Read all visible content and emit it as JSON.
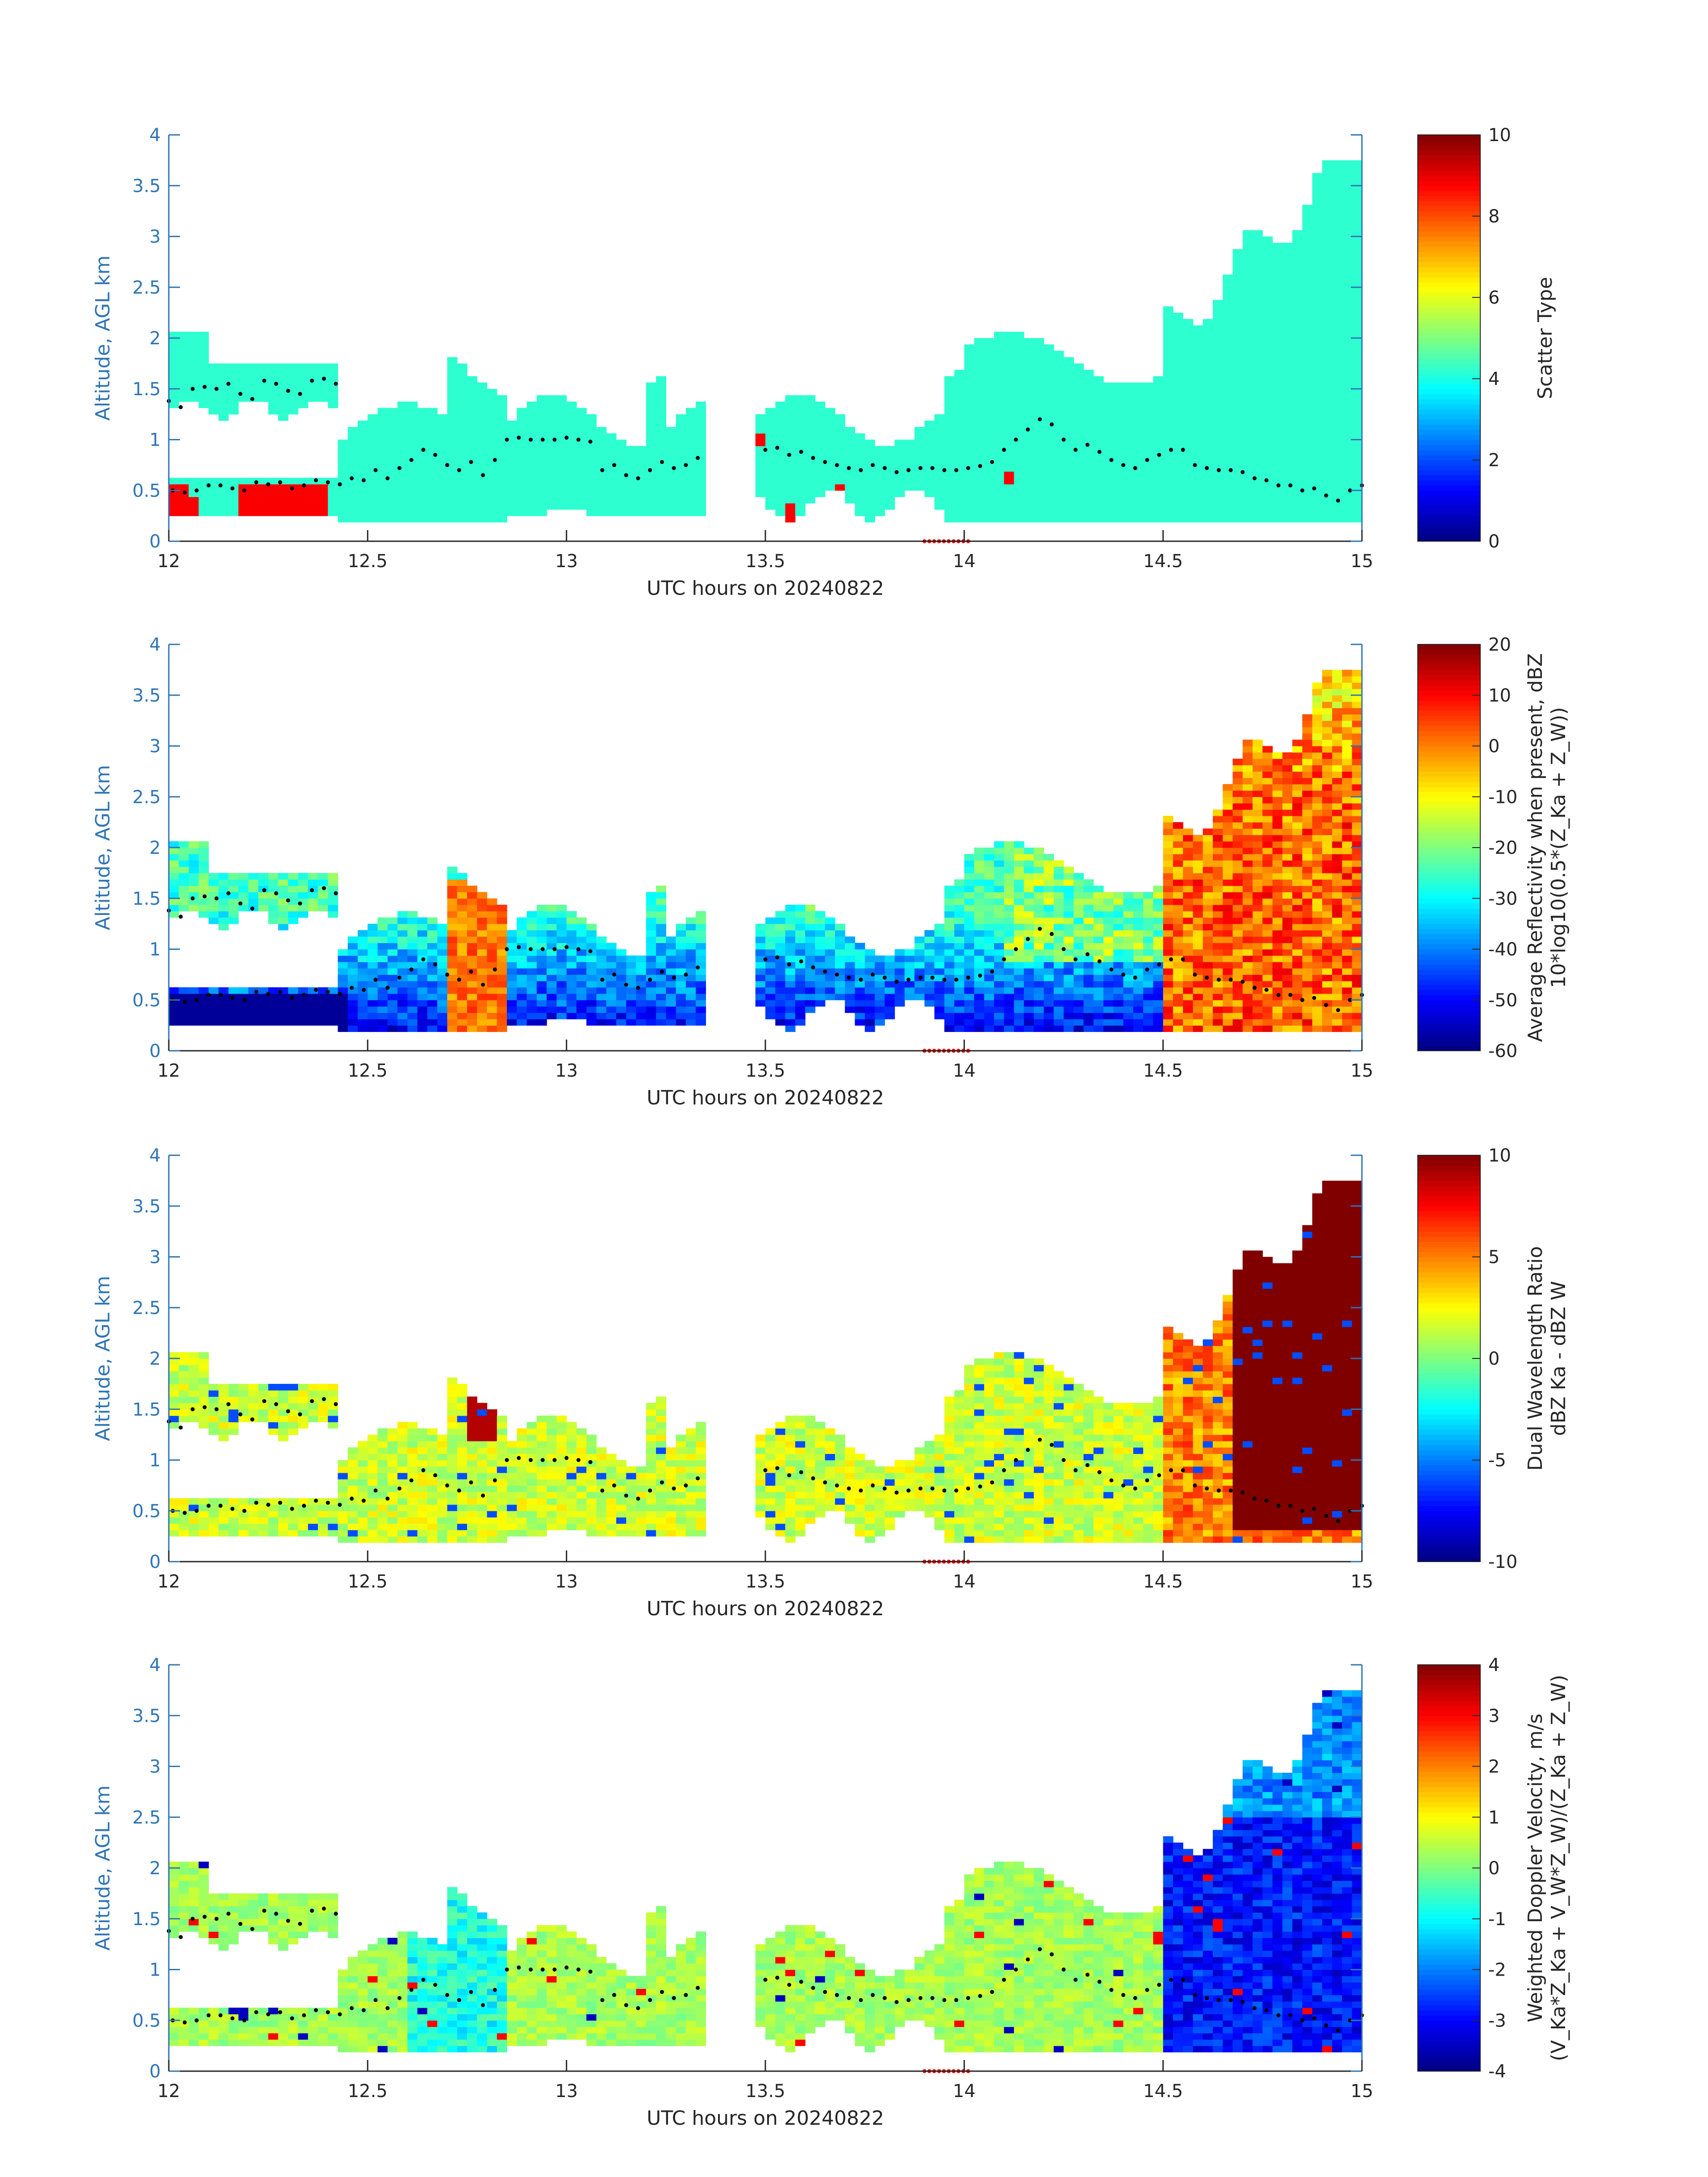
{
  "chart_data": [
    {
      "type": "heatmap",
      "xlabel": "UTC hours on 20240822",
      "ylabel": "Altitude, AGL km",
      "xlim": [
        12,
        15
      ],
      "ylim": [
        0,
        4
      ],
      "xticks": [
        "12",
        "12.5",
        "13",
        "13.5",
        "14",
        "14.5",
        "15"
      ],
      "yticks": [
        "0",
        "0.5",
        "1",
        "1.5",
        "2",
        "2.5",
        "3",
        "3.5",
        "4"
      ],
      "colorbar": {
        "label": "Scatter Type",
        "range": [
          0,
          10
        ],
        "ticks": [
          "0",
          "2",
          "4",
          "6",
          "8",
          "10"
        ]
      },
      "field": "scatter_type"
    },
    {
      "type": "heatmap",
      "xlabel": "UTC hours on 20240822",
      "ylabel": "Altitude, AGL km",
      "xlim": [
        12,
        15
      ],
      "ylim": [
        0,
        4
      ],
      "xticks": [
        "12",
        "12.5",
        "13",
        "13.5",
        "14",
        "14.5",
        "15"
      ],
      "yticks": [
        "0",
        "0.5",
        "1",
        "1.5",
        "2",
        "2.5",
        "3",
        "3.5",
        "4"
      ],
      "colorbar": {
        "label": "Average Reflectivity when present, dBZ",
        "label2": "10*log10(0.5*(Z_Ka + Z_W))",
        "range": [
          -60,
          20
        ],
        "ticks": [
          "-60",
          "-50",
          "-40",
          "-30",
          "-20",
          "-10",
          "0",
          "10",
          "20"
        ]
      },
      "field": "reflectivity"
    },
    {
      "type": "heatmap",
      "xlabel": "UTC hours on 20240822",
      "ylabel": "Altitude, AGL km",
      "xlim": [
        12,
        15
      ],
      "ylim": [
        0,
        4
      ],
      "xticks": [
        "12",
        "12.5",
        "13",
        "13.5",
        "14",
        "14.5",
        "15"
      ],
      "yticks": [
        "0",
        "0.5",
        "1",
        "1.5",
        "2",
        "2.5",
        "3",
        "3.5",
        "4"
      ],
      "colorbar": {
        "label": "Dual Wavelength Ratio",
        "label2": "dBZ Ka - dBZ W",
        "range": [
          -10,
          10
        ],
        "ticks": [
          "-10",
          "-5",
          "0",
          "5",
          "10"
        ]
      },
      "field": "dwr"
    },
    {
      "type": "heatmap",
      "xlabel": "UTC hours on 20240822",
      "ylabel": "Altitude, AGL km",
      "xlim": [
        12,
        15
      ],
      "ylim": [
        0,
        4
      ],
      "xticks": [
        "12",
        "12.5",
        "13",
        "13.5",
        "14",
        "14.5",
        "15"
      ],
      "yticks": [
        "0",
        "0.5",
        "1",
        "1.5",
        "2",
        "2.5",
        "3",
        "3.5",
        "4"
      ],
      "colorbar": {
        "label": "Weighted Doppler Velocity, m/s",
        "label2": "(V_Ka*Z_Ka + V_W*Z_W)/(Z_Ka + Z_W)",
        "range": [
          -4,
          4
        ],
        "ticks": [
          "-4",
          "-3",
          "-2",
          "-1",
          "0",
          "1",
          "2",
          "3",
          "4"
        ]
      },
      "field": "velocity"
    }
  ],
  "colormap": "jet",
  "colors": {
    "axis": "#2f75b5",
    "cloud_base_marker": "#000000",
    "time_marker": "#ff0000",
    "scatter_mixed": "#40ffe0",
    "scatter_drizzle": "#ff4c14"
  },
  "cloud_base": {
    "x": [
      12.01,
      12.04,
      12.07,
      12.1,
      12.13,
      12.16,
      12.19,
      12.22,
      12.25,
      12.28,
      12.31,
      12.34,
      12.37,
      12.4,
      12.43,
      12.46,
      12.49,
      12.52,
      12.55,
      12.58,
      12.61,
      12.64,
      12.67,
      12.7,
      12.73,
      12.76,
      12.79,
      12.82,
      12.85,
      12.88,
      12.91,
      12.94,
      12.97,
      13.0,
      13.03,
      13.06,
      13.09,
      13.12,
      13.15,
      13.18,
      13.21,
      13.24,
      13.27,
      13.3,
      13.33,
      13.5,
      13.53,
      13.56,
      13.59,
      13.62,
      13.65,
      13.68,
      13.71,
      13.74,
      13.77,
      13.8,
      13.83,
      13.86,
      13.89,
      13.92,
      13.95,
      13.98,
      14.01,
      14.04,
      14.07,
      14.1,
      14.13,
      14.16,
      14.19,
      14.22,
      14.25,
      14.28,
      14.31,
      14.34,
      14.37,
      14.4,
      14.43,
      14.46,
      14.49,
      14.52,
      14.55,
      14.58,
      14.61,
      14.64,
      14.67,
      14.7,
      14.73,
      14.76,
      14.79,
      14.82,
      14.85,
      14.88,
      14.91,
      14.94,
      14.97,
      15.0
    ],
    "y": [
      0.5,
      0.48,
      0.5,
      0.55,
      0.55,
      0.52,
      0.5,
      0.58,
      0.56,
      0.58,
      0.52,
      0.55,
      0.6,
      0.58,
      0.56,
      0.62,
      0.6,
      0.7,
      0.62,
      0.72,
      0.8,
      0.9,
      0.85,
      0.75,
      0.7,
      0.78,
      0.65,
      0.8,
      1.0,
      1.02,
      1.0,
      1.0,
      1.0,
      1.02,
      1.0,
      0.98,
      0.7,
      0.75,
      0.65,
      0.62,
      0.7,
      0.78,
      0.72,
      0.75,
      0.82,
      0.9,
      0.92,
      0.85,
      0.88,
      0.82,
      0.78,
      0.75,
      0.72,
      0.7,
      0.75,
      0.72,
      0.68,
      0.7,
      0.72,
      0.72,
      0.7,
      0.7,
      0.72,
      0.74,
      0.78,
      0.9,
      1.0,
      1.1,
      1.2,
      1.15,
      1.0,
      0.9,
      0.95,
      0.88,
      0.8,
      0.75,
      0.72,
      0.8,
      0.85,
      0.9,
      0.9,
      0.75,
      0.72,
      0.7,
      0.7,
      0.68,
      0.62,
      0.6,
      0.55,
      0.55,
      0.5,
      0.52,
      0.45,
      0.4,
      0.5,
      0.55
    ]
  },
  "upper_cloud_base": {
    "x": [
      12.0,
      12.03,
      12.06,
      12.09,
      12.12,
      12.15,
      12.18,
      12.21,
      12.24,
      12.27,
      12.3,
      12.33,
      12.36,
      12.39,
      12.42
    ],
    "y": [
      1.38,
      1.32,
      1.5,
      1.52,
      1.5,
      1.55,
      1.45,
      1.4,
      1.58,
      1.55,
      1.48,
      1.45,
      1.58,
      1.6,
      1.55
    ]
  },
  "time_markers": {
    "x_start": 13.9,
    "x_end": 14.01,
    "count": 10
  }
}
